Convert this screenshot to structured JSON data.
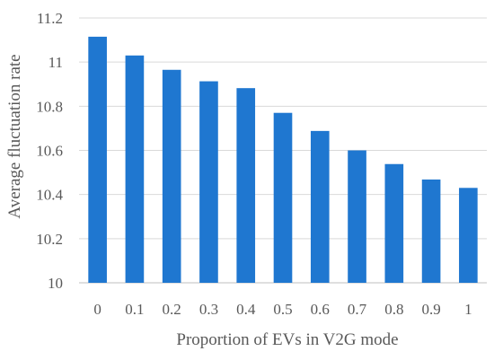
{
  "chart_data": {
    "type": "bar",
    "title": "",
    "xlabel": "Proportion of EVs in V2G mode",
    "ylabel": "Average fluctuation rate",
    "categories": [
      "0",
      "0.1",
      "0.2",
      "0.3",
      "0.4",
      "0.5",
      "0.6",
      "0.7",
      "0.8",
      "0.9",
      "1"
    ],
    "values": [
      11.115,
      11.03,
      10.965,
      10.913,
      10.882,
      10.77,
      10.688,
      10.6,
      10.538,
      10.468,
      10.43
    ],
    "ylim": [
      10,
      11.2
    ],
    "yticks": [
      "10",
      "10.2",
      "10.4",
      "10.6",
      "10.8",
      "11",
      "11.2"
    ],
    "grid": true,
    "legend": "none",
    "colors": {
      "bar": "#1f77d0",
      "grid": "#d9d9d9",
      "text": "#595959"
    }
  }
}
